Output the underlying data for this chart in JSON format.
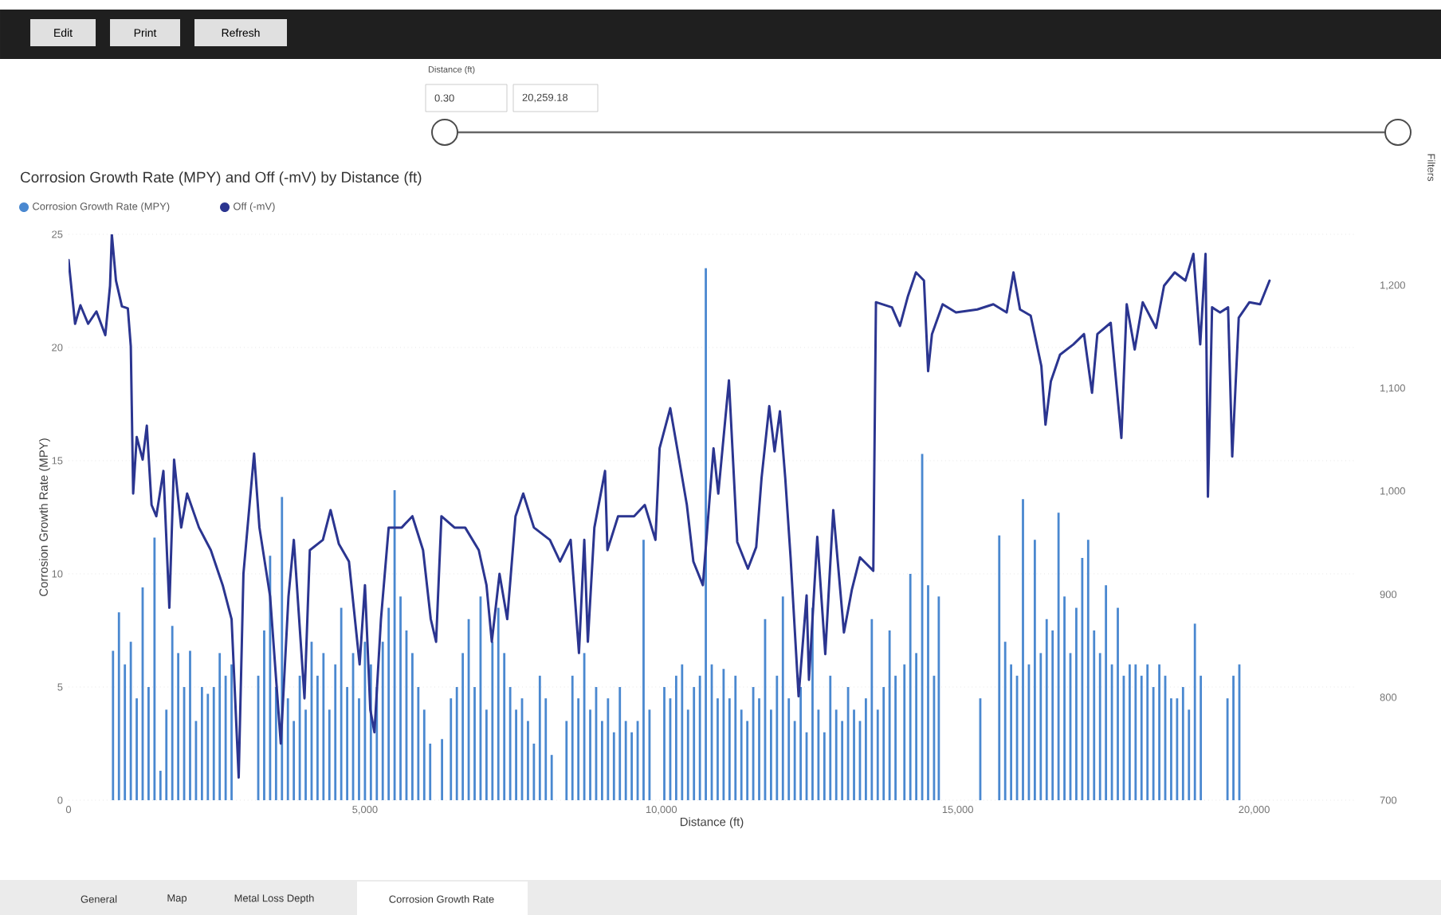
{
  "chart_data": {
    "type": "bar",
    "title": "Corrosion Growth Rate (MPY) and Off (-mV) by Distance (ft)",
    "xlabel": "Distance (ft)",
    "ylabel": "Corrosion Growth Rate (MPY)",
    "legend": "top left",
    "grid": "y",
    "xlim": [
      0,
      21700
    ],
    "xticks": [
      0,
      {
        "value": 5000,
        "label": "5,000"
      },
      {
        "value": 10000,
        "label": "10,000"
      },
      {
        "value": 15000,
        "label": "15,000"
      },
      {
        "value": 20000,
        "label": "20,000"
      }
    ],
    "ylim": [
      0,
      25
    ],
    "yticks": [
      0,
      5,
      10,
      15,
      20,
      25
    ],
    "y2lim": [
      700,
      1250
    ],
    "y2ticks": [
      700,
      800,
      900,
      {
        "value": 1000,
        "label": "1,000"
      },
      {
        "value": 1100,
        "label": "1,100"
      },
      {
        "value": 1200,
        "label": "1,200"
      }
    ],
    "series": [
      {
        "name": "Corrosion Growth Rate (MPY)",
        "color": "#4a88d0",
        "x": [
          750,
          850,
          950,
          1050,
          1150,
          1250,
          1350,
          1450,
          1550,
          1650,
          1750,
          1850,
          1950,
          2050,
          2150,
          2250,
          2350,
          2450,
          2550,
          2650,
          2750,
          2850,
          3200,
          3300,
          3400,
          3500,
          3600,
          3700,
          3800,
          3900,
          4000,
          4100,
          4200,
          4300,
          4400,
          4500,
          4600,
          4700,
          4800,
          4900,
          5000,
          5100,
          5200,
          5300,
          5400,
          5500,
          5600,
          5700,
          5800,
          5900,
          6000,
          6100,
          6300,
          6450,
          6550,
          6650,
          6750,
          6850,
          6950,
          7050,
          7150,
          7250,
          7350,
          7450,
          7550,
          7650,
          7750,
          7850,
          7950,
          8050,
          8150,
          8400,
          8500,
          8600,
          8700,
          8800,
          8900,
          9000,
          9100,
          9200,
          9300,
          9400,
          9500,
          9600,
          9700,
          9800,
          10050,
          10150,
          10250,
          10350,
          10450,
          10550,
          10650,
          10750,
          10850,
          10950,
          11050,
          11150,
          11250,
          11350,
          11450,
          11550,
          11650,
          11750,
          11850,
          11950,
          12050,
          12150,
          12250,
          12350,
          12450,
          12550,
          12650,
          12750,
          12850,
          12950,
          13050,
          13150,
          13250,
          13350,
          13450,
          13550,
          13650,
          13750,
          13850,
          13950,
          14100,
          14200,
          14300,
          14400,
          14500,
          14600,
          14680,
          15380,
          15700,
          15800,
          15900,
          16000,
          16100,
          16200,
          16300,
          16400,
          16500,
          16600,
          16700,
          16800,
          16900,
          17000,
          17100,
          17200,
          17300,
          17400,
          17500,
          17600,
          17700,
          17800,
          17900,
          18000,
          18100,
          18200,
          18300,
          18400,
          18500,
          18600,
          18700,
          18800,
          18900,
          19000,
          19100,
          19550,
          19650,
          19750
        ],
        "values": [
          6.6,
          8.3,
          6.0,
          7.0,
          4.5,
          9.4,
          5.0,
          11.6,
          1.3,
          4.0,
          7.7,
          6.5,
          5.0,
          6.6,
          3.5,
          5.0,
          4.7,
          5.0,
          6.5,
          5.5,
          6.0,
          null,
          5.5,
          7.5,
          10.8,
          5.0,
          13.4,
          4.5,
          3.5,
          5.5,
          4.0,
          7.0,
          5.5,
          6.5,
          4.0,
          6.0,
          8.5,
          5.0,
          6.5,
          4.5,
          7.0,
          6.0,
          5.0,
          7.0,
          8.5,
          13.7,
          9.0,
          7.5,
          6.5,
          5.0,
          4.0,
          2.5,
          2.7,
          4.5,
          5.0,
          6.5,
          8.0,
          5.0,
          9.0,
          4.0,
          7.0,
          8.5,
          6.5,
          5.0,
          4.0,
          4.5,
          3.5,
          2.5,
          5.5,
          4.5,
          2.0,
          3.5,
          5.5,
          4.5,
          6.5,
          4.0,
          5.0,
          3.5,
          4.5,
          3.0,
          5.0,
          3.5,
          3.0,
          3.5,
          11.5,
          4.0,
          5.0,
          4.5,
          5.5,
          6.0,
          4.0,
          5.0,
          5.5,
          23.5,
          6.0,
          4.5,
          5.8,
          4.5,
          5.5,
          4.0,
          3.5,
          5.0,
          4.5,
          8.0,
          4.0,
          5.5,
          9.0,
          4.5,
          3.5,
          5.0,
          3.0,
          8.5,
          4.0,
          3.0,
          5.5,
          4.0,
          3.5,
          5.0,
          4.0,
          3.5,
          4.5,
          8.0,
          4.0,
          5.0,
          7.5,
          5.5,
          6.0,
          10.0,
          6.5,
          15.3,
          9.5,
          5.5,
          9.0,
          4.5,
          11.7,
          7.0,
          6.0,
          5.5,
          13.3,
          6.0,
          11.5,
          6.5,
          8.0,
          7.5,
          12.7,
          9.0,
          6.5,
          8.5,
          10.7,
          11.5,
          7.5,
          6.5,
          9.5,
          6.0,
          8.5,
          5.5,
          6.0,
          6.0,
          5.5,
          6.0,
          5.0,
          6.0,
          5.5,
          4.5,
          4.5,
          5.0,
          4.0,
          7.8,
          5.5,
          4.5,
          5.5,
          6.0
        ]
      },
      {
        "name": "Off (-mV)",
        "type": "line",
        "axis": "y2",
        "color": "#2b3590",
        "x": [
          0,
          110,
          200,
          330,
          470,
          620,
          700,
          730,
          800,
          900,
          1000,
          1050,
          1090,
          1150,
          1250,
          1320,
          1400,
          1480,
          1600,
          1700,
          1780,
          1900,
          2000,
          2200,
          2400,
          2600,
          2750,
          2870,
          2950,
          3130,
          3220,
          3400,
          3580,
          3710,
          3800,
          3980,
          4070,
          4290,
          4420,
          4560,
          4730,
          4910,
          5000,
          5090,
          5160,
          5270,
          5400,
          5620,
          5800,
          5980,
          6110,
          6200,
          6290,
          6510,
          6690,
          6920,
          7050,
          7140,
          7270,
          7400,
          7540,
          7670,
          7850,
          8120,
          8290,
          8470,
          8610,
          8700,
          8760,
          8870,
          9050,
          9090,
          9270,
          9540,
          9720,
          9900,
          9970,
          10150,
          10300,
          10430,
          10540,
          10700,
          10880,
          10960,
          11140,
          11280,
          11460,
          11600,
          11690,
          11820,
          11910,
          12000,
          12090,
          12180,
          12315,
          12450,
          12490,
          12630,
          12765,
          12900,
          13080,
          13215,
          13350,
          13575,
          13620,
          13890,
          14025,
          14160,
          14295,
          14430,
          14500,
          14565,
          14745,
          14970,
          15330,
          15600,
          15825,
          15940,
          16050,
          16230,
          16410,
          16480,
          16570,
          16725,
          16950,
          17130,
          17265,
          17355,
          17580,
          17760,
          17850,
          17985,
          18120,
          18345,
          18480,
          18660,
          18840,
          18975,
          19090,
          19180,
          19220,
          19290,
          19425,
          19560,
          19630,
          19740,
          19920,
          20100,
          20260
        ],
        "values": [
          1225,
          1163,
          1181,
          1163,
          1175,
          1152,
          1200,
          1250,
          1205,
          1180,
          1178,
          1141,
          998,
          1053,
          1031,
          1064,
          987,
          976,
          1020,
          887,
          1031,
          965,
          998,
          965,
          943,
          909,
          876,
          722,
          920,
          1037,
          965,
          898,
          755,
          898,
          953,
          799,
          943,
          953,
          982,
          949,
          932,
          832,
          909,
          788,
          766,
          876,
          965,
          965,
          976,
          943,
          876,
          854,
          976,
          965,
          965,
          943,
          909,
          854,
          920,
          876,
          976,
          998,
          965,
          953,
          932,
          953,
          843,
          953,
          854,
          965,
          1020,
          943,
          976,
          976,
          987,
          953,
          1042,
          1081,
          1031,
          987,
          932,
          909,
          1042,
          998,
          1108,
          951,
          925,
          946,
          1013,
          1083,
          1039,
          1078,
          1013,
          936,
          801,
          899,
          817,
          956,
          842,
          982,
          863,
          905,
          936,
          923,
          1184,
          1179,
          1161,
          1190,
          1213,
          1205,
          1117,
          1153,
          1182,
          1174,
          1177,
          1182,
          1174,
          1213,
          1177,
          1171,
          1122,
          1065,
          1107,
          1133,
          1143,
          1153,
          1096,
          1153,
          1164,
          1052,
          1182,
          1138,
          1184,
          1159,
          1200,
          1213,
          1205,
          1231,
          1143,
          1231,
          995,
          1179,
          1174,
          1179,
          1034,
          1169,
          1184,
          1182,
          1205
        ]
      }
    ],
    "annotations": [
      "Edit",
      "Print",
      "Refresh",
      "Distance (ft)",
      "0.30",
      "20,259.18",
      "General",
      "Map",
      "Metal Loss Depth",
      "Corrosion Growth Rate",
      "Filters"
    ]
  }
}
